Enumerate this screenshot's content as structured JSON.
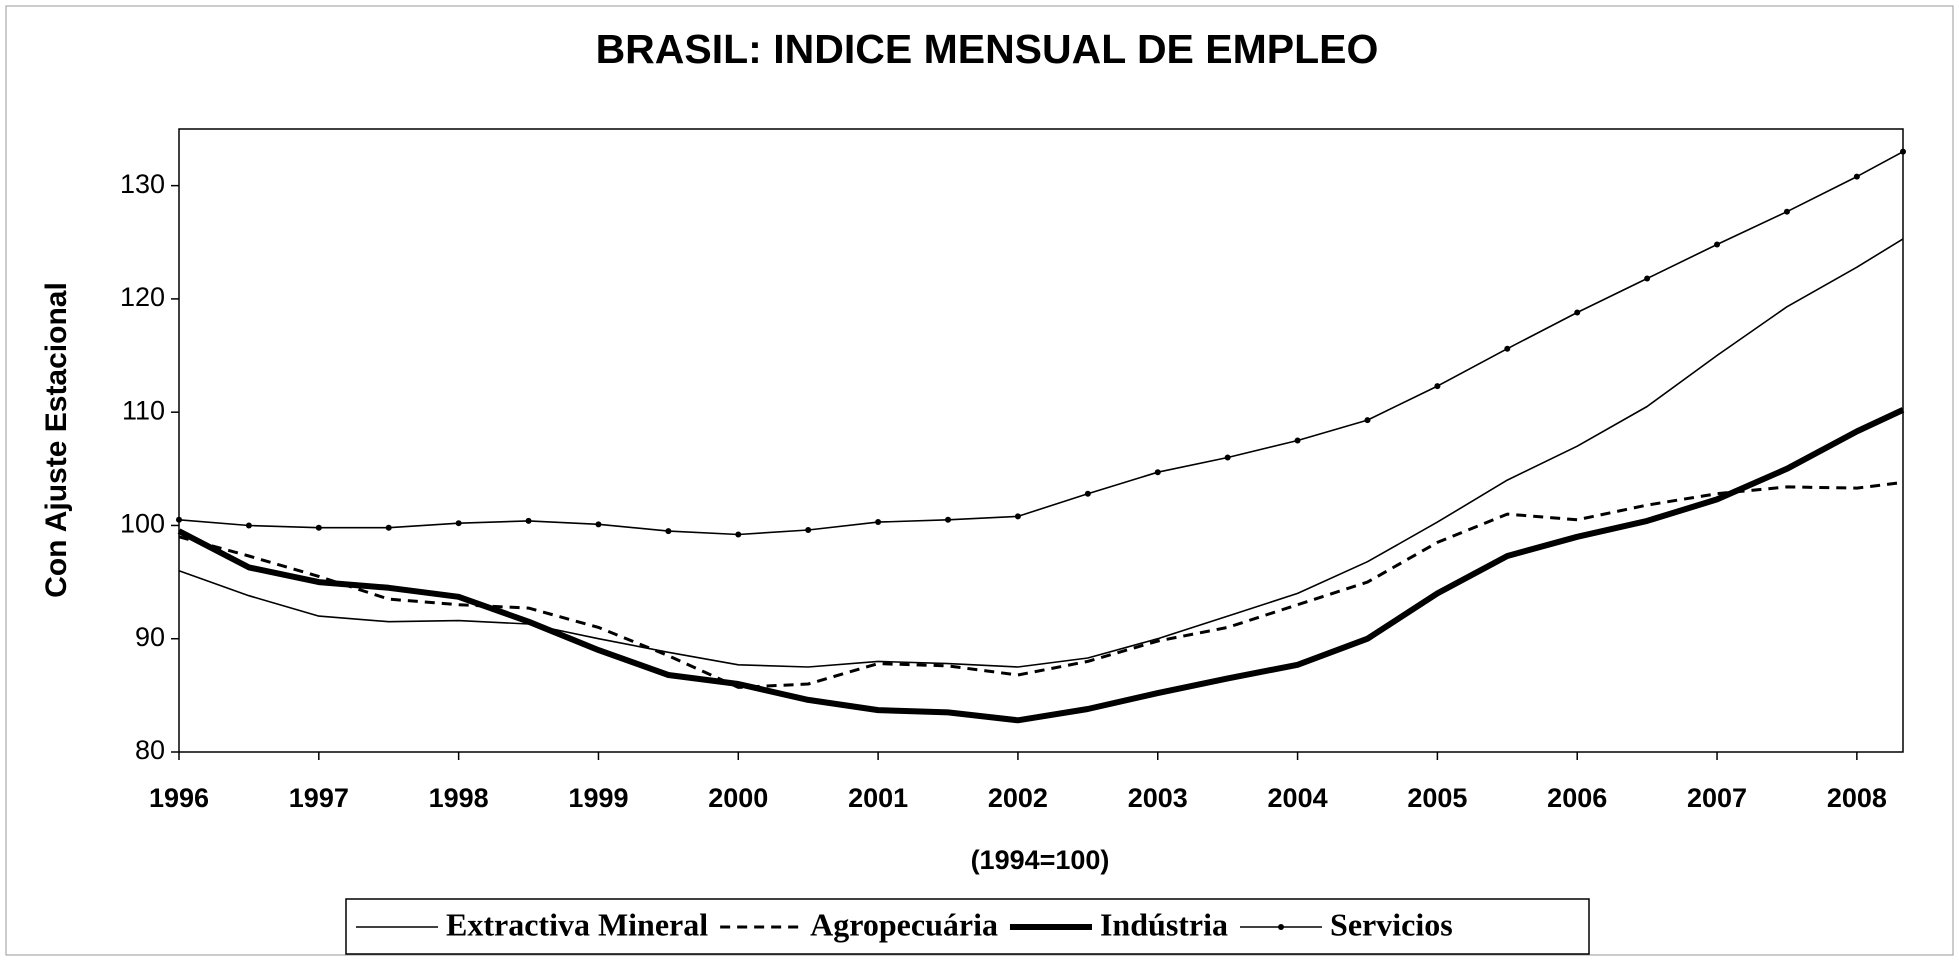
{
  "chart_data": {
    "type": "line",
    "title": "BRASIL: INDICE MENSUAL DE EMPLEO",
    "y_label": "Con Ajuste Estacional",
    "x_label": "(1994=100)",
    "x": [
      1996,
      1996.5,
      1997,
      1997.5,
      1998,
      1998.5,
      1999,
      1999.5,
      2000,
      2000.5,
      2001,
      2001.5,
      2002,
      2002.5,
      2003,
      2003.5,
      2004,
      2004.5,
      2005,
      2005.5,
      2006,
      2006.5,
      2007,
      2007.5,
      2008,
      2008.33
    ],
    "series": [
      {
        "name": "Extractiva Mineral",
        "color": "#000000",
        "line_style": "thin",
        "values": [
          96,
          93.8,
          92,
          91.5,
          91.6,
          91.3,
          90,
          88.8,
          87.7,
          87.5,
          88,
          87.8,
          87.5,
          88.3,
          90,
          92,
          94,
          96.8,
          100.3,
          104,
          107,
          110.5,
          115,
          119.3,
          122.8,
          125.3
        ]
      },
      {
        "name": "Agropecuária",
        "color": "#000000",
        "line_style": "dashed",
        "values": [
          99,
          97.3,
          95.5,
          93.5,
          93,
          92.7,
          91,
          88.5,
          85.7,
          86,
          87.8,
          87.6,
          86.8,
          88,
          89.8,
          91,
          93,
          95,
          98.5,
          101,
          100.5,
          101.8,
          102.8,
          103.4,
          103.3,
          103.8
        ]
      },
      {
        "name": "Indústria",
        "color": "#000000",
        "line_style": "thick",
        "values": [
          99.5,
          96.3,
          95,
          94.5,
          93.7,
          91.5,
          89,
          86.8,
          86,
          84.6,
          83.7,
          83.5,
          82.8,
          83.8,
          85.2,
          86.5,
          87.7,
          90,
          94,
          97.3,
          99,
          100.4,
          102.3,
          105,
          108.3,
          110.2
        ]
      },
      {
        "name": "Servicios",
        "color": "#000000",
        "line_style": "markers",
        "values": [
          100.5,
          100,
          99.8,
          99.8,
          100.2,
          100.4,
          100.1,
          99.5,
          99.2,
          99.6,
          100.3,
          100.5,
          100.8,
          102.8,
          104.7,
          106,
          107.5,
          109.3,
          112.3,
          115.6,
          118.8,
          121.8,
          124.8,
          127.7,
          130.8,
          133
        ]
      }
    ],
    "xlim": [
      1996,
      2008.33
    ],
    "ylim": [
      80,
      135
    ],
    "xticks": [
      1996,
      1997,
      1998,
      1999,
      2000,
      2001,
      2002,
      2003,
      2004,
      2005,
      2006,
      2007,
      2008
    ],
    "yticks": [
      80,
      90,
      100,
      110,
      120,
      130
    ],
    "grid": false,
    "legend": "bottom"
  }
}
